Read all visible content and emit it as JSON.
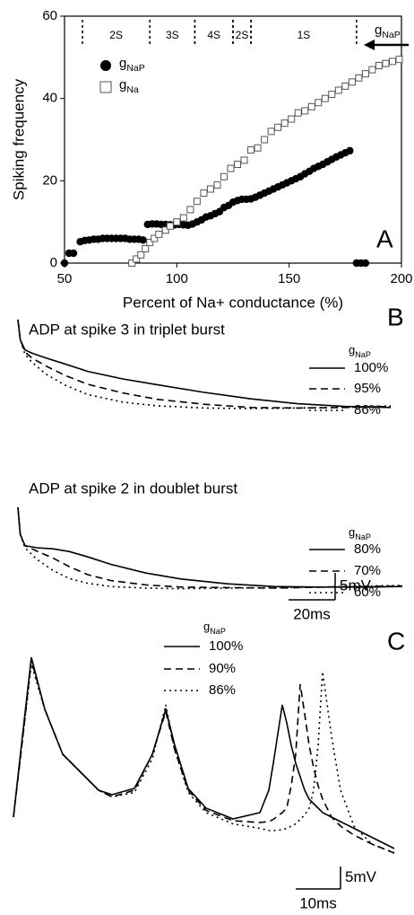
{
  "chart_data": [
    {
      "type": "scatter",
      "panel_label": "A",
      "y_label": "Spiking frequency",
      "x_label": "Percent of Na+ conductance (%)",
      "xlim": [
        50,
        200
      ],
      "ylim": [
        0,
        60
      ],
      "xticks": [
        50,
        100,
        150,
        200
      ],
      "yticks": [
        0,
        20,
        40,
        60
      ],
      "legend": "upper-left",
      "arrow_label": "gNaP",
      "regions": [
        {
          "label": "2S",
          "from": 58,
          "to": 88
        },
        {
          "label": "3S",
          "from": 88,
          "to": 108
        },
        {
          "label": "4S",
          "from": 108,
          "to": 125
        },
        {
          "label": "2S",
          "from": 125,
          "to": 133
        },
        {
          "label": "1S",
          "from": 133,
          "to": 180
        }
      ],
      "series": [
        {
          "name": "gNaP",
          "marker": "circle",
          "color": "#000000",
          "x": [
            50,
            52,
            54,
            57,
            59,
            61,
            63,
            65,
            67,
            69,
            71,
            73,
            75,
            77,
            79,
            81,
            83,
            85,
            87,
            89,
            91,
            93,
            95,
            97,
            99,
            101,
            103,
            105,
            107,
            109,
            111,
            113,
            115,
            117,
            119,
            121,
            123,
            125,
            127,
            129,
            131,
            133,
            135,
            137,
            139,
            141,
            143,
            145,
            147,
            149,
            151,
            153,
            155,
            157,
            159,
            161,
            163,
            165,
            167,
            169,
            171,
            173,
            175,
            177,
            180,
            182,
            184
          ],
          "values": [
            0,
            2.4,
            2.4,
            5.2,
            5.5,
            5.6,
            5.8,
            5.8,
            6,
            6,
            6,
            6,
            6,
            6,
            5.8,
            5.8,
            5.8,
            5.6,
            9.4,
            9.5,
            9.5,
            9.4,
            9.4,
            9.3,
            9.3,
            9.4,
            9.3,
            9.2,
            9.5,
            10,
            10.5,
            11.2,
            11.5,
            12,
            12.5,
            13.5,
            14,
            14.8,
            15.2,
            15.5,
            15.5,
            15.6,
            16,
            16.5,
            17,
            17.5,
            18,
            18.5,
            19,
            19.5,
            20,
            20.5,
            21,
            21.7,
            22.3,
            23,
            23.5,
            24,
            24.6,
            25.2,
            25.8,
            26.3,
            26.8,
            27.3,
            0,
            0,
            0
          ]
        },
        {
          "name": "gNa",
          "marker": "square",
          "color": "#555555",
          "x": [
            80,
            82,
            84,
            86,
            88,
            90,
            92,
            95,
            97,
            100,
            103,
            106,
            109,
            112,
            115,
            118,
            121,
            124,
            127,
            130,
            133,
            136,
            139,
            142,
            145,
            148,
            151,
            154,
            157,
            160,
            163,
            166,
            169,
            172,
            175,
            178,
            181,
            184,
            187,
            190,
            193,
            196,
            199
          ],
          "values": [
            0,
            1,
            2,
            3.5,
            5,
            6,
            7,
            8,
            9,
            10,
            11,
            13,
            15,
            17,
            18,
            19,
            21,
            23,
            24,
            25,
            27.5,
            28,
            30,
            32,
            33,
            34,
            35,
            36.5,
            37,
            38,
            39,
            40,
            41,
            42,
            43,
            44,
            45,
            46,
            47,
            48,
            48.5,
            49,
            49.5
          ]
        }
      ]
    },
    {
      "type": "line",
      "panel_label": "B",
      "title": "ADP at spike 3 in triplet burst",
      "legend_title": "gNaP",
      "xlim": [
        0,
        165
      ],
      "ylim": [
        0,
        17
      ],
      "x": [
        0,
        1,
        3,
        6,
        12,
        20,
        30,
        45,
        60,
        80,
        100,
        120,
        140,
        160
      ],
      "series": [
        {
          "name": "100%",
          "dash": "solid",
          "color": "#000000",
          "values": [
            16.5,
            12.8,
            10.9,
            10.3,
            9.4,
            8.3,
            6.9,
            5.5,
            4.4,
            3,
            1.8,
            0.9,
            0.4,
            0.2
          ]
        },
        {
          "name": "95%",
          "dash": "dashed",
          "color": "#000000",
          "values": [
            16.5,
            12.8,
            10.5,
            9.4,
            7.9,
            6.2,
            4.5,
            2.9,
            1.7,
            0.8,
            0.2,
            0.1,
            0.2,
            0.4
          ]
        },
        {
          "name": "86%",
          "dash": "dotted",
          "color": "#000000",
          "values": [
            16.5,
            12.8,
            10.1,
            8.6,
            6.4,
            4.4,
            2.6,
            1.2,
            0.5,
            0.1,
            0,
            0.1,
            0.2,
            0.5
          ]
        }
      ]
    },
    {
      "type": "line",
      "title": "ADP at spike 2 in doublet burst",
      "legend_title": "gNaP",
      "xlim": [
        0,
        165
      ],
      "ylim": [
        0,
        15
      ],
      "x": [
        0,
        1,
        3,
        8,
        15,
        22,
        30,
        40,
        55,
        70,
        90,
        110,
        130,
        150,
        165
      ],
      "scale_bar": {
        "y": 5,
        "y_label": "5mV",
        "x": 20,
        "x_label": "20ms"
      },
      "series": [
        {
          "name": "80%",
          "dash": "solid",
          "color": "#000000",
          "values": [
            15,
            10,
            7.9,
            7.5,
            7.3,
            6.8,
            5.8,
            4.4,
            2.8,
            1.7,
            0.8,
            0.3,
            0.2,
            0.2,
            0.3
          ]
        },
        {
          "name": "70%",
          "dash": "dashed",
          "color": "#000000",
          "values": [
            15,
            10,
            7.9,
            6.9,
            5.6,
            4,
            2.5,
            1.4,
            0.6,
            0.2,
            0.1,
            0,
            0.2,
            0.3,
            0.4
          ]
        },
        {
          "name": "60%",
          "dash": "dotted",
          "color": "#000000",
          "values": [
            15,
            10,
            7.5,
            5.4,
            3.3,
            1.8,
            0.9,
            0.3,
            0,
            -0.1,
            0,
            0.1,
            0.2,
            0.4,
            0.5
          ]
        }
      ]
    },
    {
      "type": "line",
      "panel_label": "C",
      "legend_title": "gNaP",
      "xlim": [
        0,
        85
      ],
      "ylim": [
        0,
        52
      ],
      "x": [
        0,
        2,
        4,
        7,
        11,
        15,
        19,
        22,
        27,
        31,
        34,
        36,
        39,
        43,
        49,
        55,
        57,
        58,
        60,
        61,
        62,
        63,
        64,
        65,
        66,
        67,
        68,
        69,
        71,
        73,
        76,
        80,
        85
      ],
      "scale_bar": {
        "y": 5,
        "y_label": "5mV",
        "x": 10,
        "x_label": "10ms"
      },
      "series": [
        {
          "name": "100%",
          "dash": "solid",
          "color": "#000000",
          "values": [
            14,
            32,
            49.6,
            38,
            28,
            24,
            20,
            19,
            20.4,
            28,
            38,
            30,
            20.4,
            16,
            13.6,
            15,
            20,
            26,
            39,
            35,
            30,
            26,
            23,
            20,
            18,
            17,
            16,
            15,
            14,
            13,
            11.5,
            9.5,
            7
          ]
        },
        {
          "name": "90%",
          "dash": "dashed",
          "color": "#000000",
          "values": [
            14,
            31,
            49,
            38,
            28,
            24,
            20,
            18.5,
            20,
            28,
            37.5,
            29,
            20,
            15.5,
            13.2,
            12.8,
            13,
            13.5,
            15,
            16,
            21,
            28,
            43.6,
            37,
            30,
            25,
            21,
            18,
            14,
            12,
            10,
            8,
            6
          ]
        },
        {
          "name": "86%",
          "dash": "dotted",
          "color": "#000000",
          "values": [
            14,
            31,
            48,
            38,
            28,
            24,
            20,
            18.5,
            19.5,
            27,
            39,
            29,
            19.5,
            15,
            12.5,
            11.5,
            11,
            11,
            11.2,
            11.5,
            12,
            12.5,
            13.5,
            14.5,
            16,
            20,
            30,
            46.4,
            32,
            20,
            12,
            8,
            6
          ]
        }
      ]
    }
  ]
}
